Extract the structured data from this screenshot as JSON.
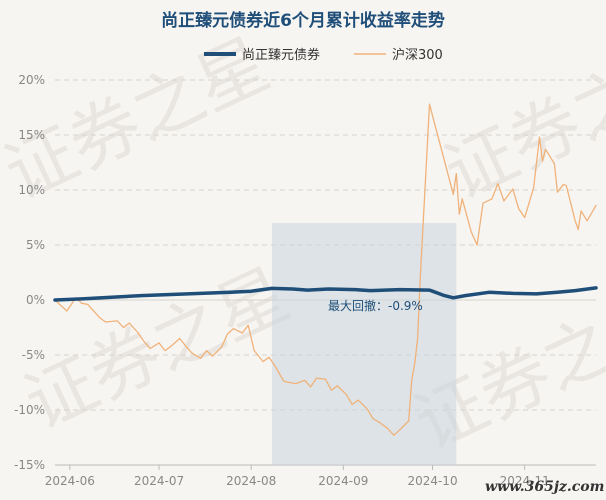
{
  "chart_data": {
    "type": "line",
    "title": "尚正臻元债券近6个月累计收益率走势",
    "ylim": [
      -15,
      20
    ],
    "yticks": [
      "-15%",
      "-10%",
      "-5%",
      "0%",
      "5%",
      "10%",
      "15%",
      "20%"
    ],
    "ytick_values": [
      -15,
      -10,
      -5,
      0,
      5,
      10,
      15,
      20
    ],
    "xticks": [
      "2024-06",
      "2024-07",
      "2024-08",
      "2024-09",
      "2024-10",
      "2024-11"
    ],
    "x_start": "2024-05-27",
    "x_end": "2024-11-25",
    "grid": true,
    "legend_position": "top",
    "drawdown": {
      "start": "2024-08-08",
      "end": "2024-10-09",
      "label": "最大回撤：-0.9%"
    },
    "series": [
      {
        "name": "尚正臻元债券",
        "color": "#1f4e79",
        "points": [
          [
            "2024-05-27",
            0.0
          ],
          [
            "2024-06-05",
            0.1
          ],
          [
            "2024-06-15",
            0.25
          ],
          [
            "2024-06-25",
            0.4
          ],
          [
            "2024-07-05",
            0.5
          ],
          [
            "2024-07-15",
            0.6
          ],
          [
            "2024-07-25",
            0.7
          ],
          [
            "2024-08-01",
            0.8
          ],
          [
            "2024-08-08",
            1.05
          ],
          [
            "2024-08-15",
            1.0
          ],
          [
            "2024-08-20",
            0.9
          ],
          [
            "2024-08-27",
            1.0
          ],
          [
            "2024-09-05",
            0.95
          ],
          [
            "2024-09-10",
            0.85
          ],
          [
            "2024-09-20",
            0.95
          ],
          [
            "2024-09-30",
            0.9
          ],
          [
            "2024-10-01",
            0.8
          ],
          [
            "2024-10-05",
            0.4
          ],
          [
            "2024-10-08",
            0.2
          ],
          [
            "2024-10-12",
            0.4
          ],
          [
            "2024-10-20",
            0.7
          ],
          [
            "2024-10-28",
            0.6
          ],
          [
            "2024-11-05",
            0.55
          ],
          [
            "2024-11-12",
            0.7
          ],
          [
            "2024-11-18",
            0.85
          ],
          [
            "2024-11-25",
            1.1
          ]
        ]
      },
      {
        "name": "沪深300",
        "color": "#f0b27a",
        "points": [
          [
            "2024-05-27",
            0.0
          ],
          [
            "2024-05-29",
            -0.5
          ],
          [
            "2024-05-31",
            -1.0
          ],
          [
            "2024-06-03",
            0.2
          ],
          [
            "2024-06-05",
            -0.3
          ],
          [
            "2024-06-07",
            -0.4
          ],
          [
            "2024-06-11",
            -1.6
          ],
          [
            "2024-06-13",
            -2.0
          ],
          [
            "2024-06-17",
            -1.9
          ],
          [
            "2024-06-19",
            -2.5
          ],
          [
            "2024-06-21",
            -2.1
          ],
          [
            "2024-06-24",
            -3.0
          ],
          [
            "2024-06-26",
            -3.8
          ],
          [
            "2024-06-28",
            -4.4
          ],
          [
            "2024-07-01",
            -3.9
          ],
          [
            "2024-07-03",
            -4.6
          ],
          [
            "2024-07-05",
            -4.2
          ],
          [
            "2024-07-08",
            -3.5
          ],
          [
            "2024-07-10",
            -4.2
          ],
          [
            "2024-07-12",
            -4.8
          ],
          [
            "2024-07-15",
            -5.3
          ],
          [
            "2024-07-17",
            -4.6
          ],
          [
            "2024-07-19",
            -5.1
          ],
          [
            "2024-07-22",
            -4.3
          ],
          [
            "2024-07-24",
            -3.1
          ],
          [
            "2024-07-26",
            -2.6
          ],
          [
            "2024-07-29",
            -3.0
          ],
          [
            "2024-07-31",
            -2.3
          ],
          [
            "2024-08-02",
            -4.6
          ],
          [
            "2024-08-05",
            -5.6
          ],
          [
            "2024-08-07",
            -5.2
          ],
          [
            "2024-08-09",
            -6.0
          ],
          [
            "2024-08-12",
            -7.4
          ],
          [
            "2024-08-14",
            -7.5
          ],
          [
            "2024-08-16",
            -7.6
          ],
          [
            "2024-08-19",
            -7.3
          ],
          [
            "2024-08-21",
            -7.9
          ],
          [
            "2024-08-23",
            -7.1
          ],
          [
            "2024-08-26",
            -7.2
          ],
          [
            "2024-08-28",
            -8.2
          ],
          [
            "2024-08-30",
            -7.8
          ],
          [
            "2024-09-02",
            -8.6
          ],
          [
            "2024-09-04",
            -9.5
          ],
          [
            "2024-09-06",
            -9.1
          ],
          [
            "2024-09-09",
            -9.9
          ],
          [
            "2024-09-11",
            -10.8
          ],
          [
            "2024-09-13",
            -11.1
          ],
          [
            "2024-09-16",
            -11.7
          ],
          [
            "2024-09-18",
            -12.3
          ],
          [
            "2024-09-20",
            -11.8
          ],
          [
            "2024-09-23",
            -11.0
          ],
          [
            "2024-09-24",
            -7.3
          ],
          [
            "2024-09-25",
            -5.8
          ],
          [
            "2024-09-26",
            -3.5
          ],
          [
            "2024-09-27",
            2.6
          ],
          [
            "2024-09-30",
            17.8
          ],
          [
            "2024-10-08",
            9.6
          ],
          [
            "2024-10-09",
            11.5
          ],
          [
            "2024-10-10",
            7.8
          ],
          [
            "2024-10-11",
            9.2
          ],
          [
            "2024-10-14",
            6.2
          ],
          [
            "2024-10-16",
            5.0
          ],
          [
            "2024-10-18",
            8.8
          ],
          [
            "2024-10-21",
            9.2
          ],
          [
            "2024-10-23",
            10.6
          ],
          [
            "2024-10-25",
            9.0
          ],
          [
            "2024-10-28",
            10.1
          ],
          [
            "2024-10-30",
            8.3
          ],
          [
            "2024-11-01",
            7.5
          ],
          [
            "2024-11-04",
            10.2
          ],
          [
            "2024-11-06",
            14.8
          ],
          [
            "2024-11-07",
            12.6
          ],
          [
            "2024-11-08",
            13.7
          ],
          [
            "2024-11-11",
            12.4
          ],
          [
            "2024-11-12",
            9.8
          ],
          [
            "2024-11-14",
            10.5
          ],
          [
            "2024-11-15",
            10.4
          ],
          [
            "2024-11-18",
            7.2
          ],
          [
            "2024-11-19",
            6.4
          ],
          [
            "2024-11-20",
            8.1
          ],
          [
            "2024-11-22",
            7.2
          ],
          [
            "2024-11-25",
            8.6
          ]
        ]
      }
    ]
  },
  "watermark": "证券之星",
  "site_label": "www.365jz.com"
}
